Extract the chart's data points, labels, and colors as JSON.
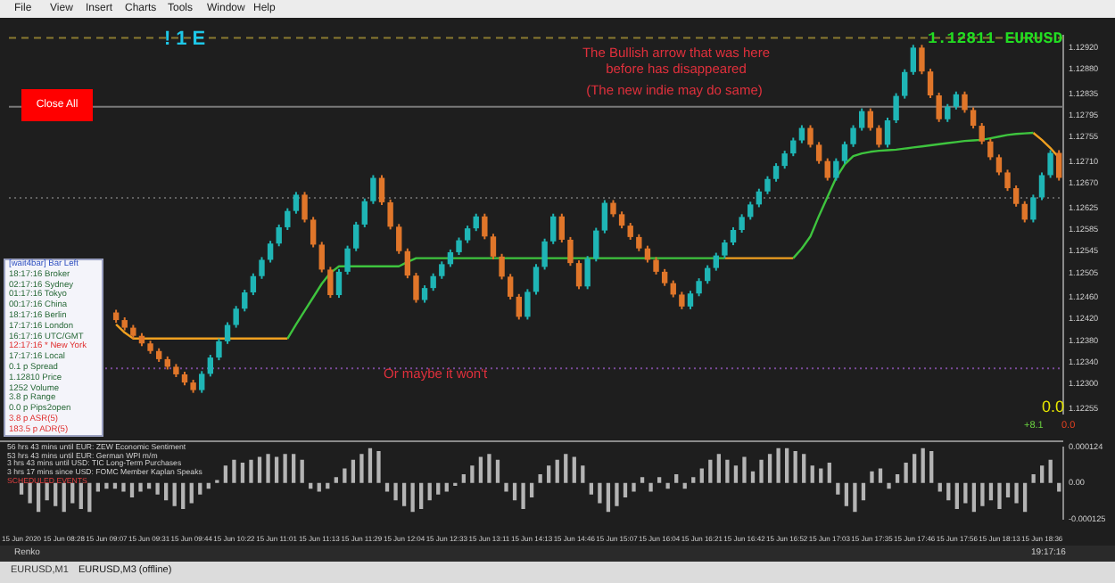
{
  "chart_data": [
    {
      "type": "candlestick",
      "categories": [
        null,
        null,
        null,
        null,
        null,
        null,
        null,
        null,
        null,
        null,
        null,
        null,
        null,
        null,
        null,
        null,
        null,
        null,
        null,
        null,
        null,
        null,
        null,
        null,
        null,
        null,
        null,
        null,
        null,
        null,
        null,
        null,
        null,
        null,
        null,
        null,
        null,
        null,
        null,
        null,
        null,
        null,
        null,
        null,
        null,
        null,
        null,
        null,
        null,
        null,
        null,
        null,
        null,
        null,
        null,
        null,
        null,
        null,
        null,
        null,
        null,
        null,
        null,
        null,
        null,
        null,
        null,
        null,
        null,
        null,
        null,
        null,
        null,
        null,
        null,
        null,
        null,
        null,
        null,
        null,
        null,
        null,
        null,
        null,
        null,
        null,
        null,
        null,
        null,
        null,
        null,
        null,
        null,
        null,
        null,
        null,
        null,
        null,
        null,
        null,
        null,
        null,
        null,
        null,
        null,
        null,
        null,
        null,
        null,
        null,
        null,
        null,
        null,
        null,
        null,
        null,
        null,
        null,
        null,
        null,
        null,
        null,
        null
      ],
      "ohlc": [
        null,
        null,
        null,
        null,
        null,
        null,
        null,
        null,
        null,
        null,
        null,
        null,
        [
          1.12432,
          1.12437,
          1.12413,
          1.12418
        ],
        [
          1.12418,
          1.12423,
          1.12399,
          1.12404
        ],
        [
          1.12404,
          1.12409,
          1.12384,
          1.12389
        ],
        [
          1.12389,
          1.12394,
          1.1237,
          1.12375
        ],
        [
          1.12375,
          1.1238,
          1.12356,
          1.12361
        ],
        [
          1.12361,
          1.12366,
          1.12341,
          1.12346
        ],
        [
          1.12346,
          1.12351,
          1.12327,
          1.12332
        ],
        [
          1.12332,
          1.12337,
          1.12313,
          1.12318
        ],
        [
          1.12318,
          1.12323,
          1.12298,
          1.12303
        ],
        [
          1.12303,
          1.12308,
          1.12284,
          1.12289
        ],
        [
          1.12289,
          1.12324,
          1.12284,
          1.12319
        ],
        [
          1.12319,
          1.12354,
          1.12314,
          1.12349
        ],
        [
          1.12349,
          1.12384,
          1.12344,
          1.12379
        ],
        [
          1.12379,
          1.12414,
          1.12374,
          1.12409
        ],
        [
          1.12409,
          1.12444,
          1.12404,
          1.12439
        ],
        [
          1.12439,
          1.12474,
          1.12434,
          1.12469
        ],
        [
          1.12469,
          1.12504,
          1.12464,
          1.12499
        ],
        [
          1.12499,
          1.12534,
          1.12494,
          1.12529
        ],
        [
          1.12529,
          1.12564,
          1.12524,
          1.12559
        ],
        [
          1.12559,
          1.12594,
          1.12554,
          1.12589
        ],
        [
          1.12589,
          1.12624,
          1.12584,
          1.12619
        ],
        [
          1.12619,
          1.12654,
          1.12614,
          1.12649
        ],
        [
          1.12649,
          1.12654,
          1.12598,
          1.12603
        ],
        [
          1.12603,
          1.12608,
          1.12552,
          1.12557
        ],
        [
          1.12557,
          1.12562,
          1.12506,
          1.12511
        ],
        [
          1.12511,
          1.12516,
          1.12459,
          1.12464
        ],
        [
          1.12464,
          1.12512,
          1.12459,
          1.12507
        ],
        [
          1.12507,
          1.12555,
          1.12502,
          1.1255
        ],
        [
          1.1255,
          1.12599,
          1.12545,
          1.12594
        ],
        [
          1.12594,
          1.12642,
          1.12589,
          1.12637
        ],
        [
          1.12637,
          1.12685,
          1.12632,
          1.1268
        ],
        [
          1.1268,
          1.12685,
          1.1263,
          1.12635
        ],
        [
          1.12635,
          1.1264,
          1.12585,
          1.1259
        ],
        [
          1.1259,
          1.12595,
          1.1254,
          1.12545
        ],
        [
          1.12545,
          1.1255,
          1.12495,
          1.125
        ],
        [
          1.125,
          1.12505,
          1.1245,
          1.12455
        ],
        [
          1.12455,
          1.12482,
          1.1245,
          1.12477
        ],
        [
          1.12477,
          1.12504,
          1.12472,
          1.12499
        ],
        [
          1.12499,
          1.12526,
          1.12494,
          1.12521
        ],
        [
          1.12521,
          1.12548,
          1.12516,
          1.12543
        ],
        [
          1.12543,
          1.1257,
          1.12538,
          1.12565
        ],
        [
          1.12565,
          1.12592,
          1.1256,
          1.12587
        ],
        [
          1.12587,
          1.12614,
          1.12582,
          1.12609
        ],
        [
          1.12609,
          1.12614,
          1.12567,
          1.12572
        ],
        [
          1.12572,
          1.12577,
          1.1253,
          1.12535
        ],
        [
          1.12535,
          1.1254,
          1.12493,
          1.12498
        ],
        [
          1.12498,
          1.12503,
          1.12456,
          1.12461
        ],
        [
          1.12461,
          1.12466,
          1.12419,
          1.12424
        ],
        [
          1.12424,
          1.12475,
          1.12419,
          1.1247
        ],
        [
          1.1247,
          1.12521,
          1.12465,
          1.12516
        ],
        [
          1.12516,
          1.12568,
          1.12511,
          1.12563
        ],
        [
          1.12563,
          1.12614,
          1.12558,
          1.12609
        ],
        [
          1.12609,
          1.12614,
          1.12561,
          1.12566
        ],
        [
          1.12566,
          1.12571,
          1.12518,
          1.12523
        ],
        [
          1.12523,
          1.12528,
          1.12475,
          1.1248
        ],
        [
          1.1248,
          1.12536,
          1.12475,
          1.12531
        ],
        [
          1.12531,
          1.12588,
          1.12526,
          1.12583
        ],
        [
          1.12583,
          1.12639,
          1.12578,
          1.12634
        ],
        [
          1.12634,
          1.12639,
          1.12608,
          1.12613
        ],
        [
          1.12613,
          1.12618,
          1.12587,
          1.12592
        ],
        [
          1.12592,
          1.12597,
          1.12566,
          1.12571
        ],
        [
          1.12571,
          1.12576,
          1.12545,
          1.1255
        ],
        [
          1.1255,
          1.12555,
          1.12524,
          1.12529
        ],
        [
          1.12529,
          1.12534,
          1.12502,
          1.12507
        ],
        [
          1.12507,
          1.12512,
          1.12481,
          1.12486
        ],
        [
          1.12486,
          1.12491,
          1.1246,
          1.12465
        ],
        [
          1.12465,
          1.1247,
          1.12438,
          1.12443
        ],
        [
          1.12443,
          1.12472,
          1.12438,
          1.12467
        ],
        [
          1.12467,
          1.12495,
          1.12462,
          1.1249
        ],
        [
          1.1249,
          1.12519,
          1.12485,
          1.12514
        ],
        [
          1.12514,
          1.12542,
          1.12509,
          1.12537
        ],
        [
          1.12537,
          1.12566,
          1.12532,
          1.12561
        ],
        [
          1.12561,
          1.12589,
          1.12556,
          1.12584
        ],
        [
          1.12584,
          1.12613,
          1.12579,
          1.12608
        ],
        [
          1.12608,
          1.12636,
          1.12603,
          1.12631
        ],
        [
          1.12631,
          1.1266,
          1.12626,
          1.12655
        ],
        [
          1.12655,
          1.12683,
          1.1265,
          1.12678
        ],
        [
          1.12678,
          1.12707,
          1.12673,
          1.12702
        ],
        [
          1.12702,
          1.1273,
          1.12697,
          1.12725
        ],
        [
          1.12725,
          1.12754,
          1.1272,
          1.12749
        ],
        [
          1.12749,
          1.12777,
          1.12744,
          1.12772
        ],
        [
          1.12772,
          1.12777,
          1.12736,
          1.12741
        ],
        [
          1.12741,
          1.12746,
          1.12706,
          1.12711
        ],
        [
          1.12711,
          1.12716,
          1.12675,
          1.1268
        ],
        [
          1.1268,
          1.12716,
          1.12675,
          1.12711
        ],
        [
          1.12711,
          1.12747,
          1.12706,
          1.12742
        ],
        [
          1.12742,
          1.12777,
          1.12737,
          1.12772
        ],
        [
          1.12772,
          1.12808,
          1.12767,
          1.12803
        ],
        [
          1.12803,
          1.12808,
          1.12767,
          1.12772
        ],
        [
          1.12772,
          1.12777,
          1.12736,
          1.12741
        ],
        [
          1.12741,
          1.12791,
          1.12736,
          1.12786
        ],
        [
          1.12786,
          1.12836,
          1.12781,
          1.12831
        ],
        [
          1.12831,
          1.1288,
          1.12826,
          1.12875
        ],
        [
          1.12875,
          1.12925,
          1.1287,
          1.1292
        ],
        [
          1.1292,
          1.12925,
          1.12871,
          1.12876
        ],
        [
          1.12876,
          1.12881,
          1.12827,
          1.12832
        ],
        [
          1.12832,
          1.12837,
          1.12783,
          1.12788
        ],
        [
          1.12788,
          1.12816,
          1.12783,
          1.12811
        ],
        [
          1.12811,
          1.12839,
          1.12806,
          1.12834
        ],
        [
          1.12834,
          1.12839,
          1.128,
          1.12805
        ],
        [
          1.12805,
          1.1281,
          1.12771,
          1.12776
        ],
        [
          1.12776,
          1.12781,
          1.12742,
          1.12747
        ],
        [
          1.12747,
          1.12752,
          1.12713,
          1.12718
        ],
        [
          1.12718,
          1.12723,
          1.12685,
          1.1269
        ],
        [
          1.1269,
          1.12695,
          1.12656,
          1.12661
        ],
        [
          1.12661,
          1.12666,
          1.12627,
          1.12632
        ],
        [
          1.12632,
          1.12637,
          1.12598,
          1.12603
        ],
        [
          1.12603,
          1.12649,
          1.12598,
          1.12644
        ],
        [
          1.12644,
          1.1269,
          1.12639,
          1.12685
        ],
        [
          1.12685,
          1.12731,
          1.1268,
          1.12726
        ],
        [
          1.12726,
          1.12731,
          1.12675,
          1.1268
        ]
      ],
      "colors": [
        null,
        null,
        null,
        null,
        null,
        null,
        null,
        null,
        null,
        null,
        null,
        null,
        "#e0762a",
        "#e0762a",
        "#e0762a",
        "#e0762a",
        "#e0762a",
        "#e0762a",
        "#e0762a",
        "#e0762a",
        "#e0762a",
        "#e0762a",
        "#1fb5b5",
        "#1fb5b5",
        "#1fb5b5",
        "#1fb5b5",
        "#1fb5b5",
        "#1fb5b5",
        "#1fb5b5",
        "#1fb5b5",
        "#1fb5b5",
        "#1fb5b5",
        "#1fb5b5",
        "#1fb5b5",
        "#e0762a",
        "#e0762a",
        "#e0762a",
        "#e0762a",
        "#1fb5b5",
        "#1fb5b5",
        "#1fb5b5",
        "#1fb5b5",
        "#1fb5b5",
        "#e0762a",
        "#e0762a",
        "#e0762a",
        "#e0762a",
        "#e0762a",
        "#1fb5b5",
        "#1fb5b5",
        "#1fb5b5",
        "#1fb5b5",
        "#1fb5b5",
        "#1fb5b5",
        "#1fb5b5",
        "#e0762a",
        "#e0762a",
        "#e0762a",
        "#e0762a",
        "#e0762a",
        "#1fb5b5",
        "#1fb5b5",
        "#1fb5b5",
        "#1fb5b5",
        "#e0762a",
        "#e0762a",
        "#e0762a",
        "#1fb5b5",
        "#1fb5b5",
        "#1fb5b5",
        "#e0762a",
        "#e0762a",
        "#e0762a",
        "#e0762a",
        "#e0762a",
        "#e0762a",
        "#e0762a",
        "#e0762a",
        "#e0762a",
        "#1fb5b5",
        "#1fb5b5",
        "#1fb5b5",
        "#1fb5b5",
        "#1fb5b5",
        "#1fb5b5",
        "#1fb5b5",
        "#1fb5b5",
        "#1fb5b5",
        "#1fb5b5",
        "#1fb5b5",
        "#1fb5b5",
        "#1fb5b5",
        "#1fb5b5",
        "#e0762a",
        "#e0762a",
        "#e0762a",
        "#1fb5b5",
        "#1fb5b5",
        "#1fb5b5",
        "#1fb5b5",
        "#e0762a",
        "#e0762a",
        "#1fb5b5",
        "#1fb5b5",
        "#1fb5b5",
        "#1fb5b5",
        "#e0762a",
        "#e0762a",
        "#e0762a",
        "#1fb5b5",
        "#1fb5b5",
        "#e0762a",
        "#e0762a",
        "#e0762a",
        "#e0762a",
        "#e0762a",
        "#e0762a",
        "#e0762a",
        "#e0762a",
        "#1fb5b5",
        "#1fb5b5",
        "#1fb5b5",
        "#e0762a"
      ],
      "series": [
        {
          "type": "line",
          "color": "#3ec43e",
          "values": [
            null,
            null,
            null,
            null,
            null,
            null,
            null,
            null,
            null,
            null,
            null,
            null,
            null,
            null,
            null,
            null,
            null,
            null,
            null,
            null,
            null,
            null,
            null,
            null,
            null,
            null,
            null,
            null,
            null,
            null,
            null,
            null,
            1.12384,
            1.1241,
            1.12435,
            1.1246,
            1.12485,
            1.12505,
            1.12517,
            1.12517,
            1.12517,
            1.12517,
            1.12517,
            1.12517,
            1.12517,
            1.12517,
            1.12525,
            1.12532,
            1.12532,
            1.12532,
            1.12532,
            1.12532,
            1.12532,
            1.12532,
            1.12532,
            1.12532,
            1.12532,
            1.12532,
            1.12532,
            1.12532,
            1.12532,
            1.12532,
            1.12532,
            1.12532,
            1.12532,
            1.12532,
            1.12532,
            1.12532,
            1.12532,
            1.12532,
            1.12532,
            1.12532,
            1.12532,
            1.12532,
            1.12532,
            1.12532,
            1.12532,
            1.12532,
            1.12532,
            1.12532,
            1.12532,
            1.12532,
            1.12532,
            1.12532,
            null,
            null,
            null,
            null,
            null,
            null,
            null,
            1.12532,
            1.1255,
            1.12572,
            1.1261,
            1.12645,
            1.1268,
            1.12705,
            1.1272,
            1.12725,
            1.12728,
            1.1273,
            1.12731,
            1.12732,
            1.12734,
            1.12736,
            1.12738,
            1.1274,
            1.12742,
            1.12744,
            1.12746,
            1.12748,
            1.12749,
            1.1275,
            1.12753,
            1.12756,
            1.12759,
            1.12761,
            1.12762,
            1.12763,
            null,
            null,
            null
          ]
        },
        {
          "type": "line",
          "color": "#f0a020",
          "values": [
            null,
            null,
            null,
            null,
            null,
            null,
            null,
            null,
            null,
            null,
            null,
            null,
            1.1241,
            1.12395,
            1.12384,
            1.12384,
            1.12384,
            1.12384,
            1.12384,
            1.12384,
            1.12384,
            1.12384,
            1.12384,
            1.12384,
            1.12384,
            1.12384,
            1.12384,
            1.12384,
            1.12384,
            1.12384,
            1.12384,
            1.12384,
            1.12384,
            null,
            null,
            null,
            null,
            null,
            null,
            null,
            null,
            null,
            null,
            null,
            null,
            null,
            null,
            null,
            null,
            null,
            null,
            null,
            null,
            null,
            null,
            null,
            null,
            null,
            null,
            null,
            null,
            null,
            null,
            null,
            null,
            null,
            null,
            null,
            null,
            null,
            null,
            null,
            null,
            null,
            null,
            null,
            null,
            null,
            null,
            null,
            null,
            null,
            null,
            1.12532,
            1.12532,
            1.12532,
            1.12532,
            1.12532,
            1.12532,
            1.12532,
            1.12532,
            1.12532,
            null,
            null,
            null,
            null,
            null,
            null,
            null,
            null,
            null,
            null,
            null,
            null,
            null,
            null,
            null,
            null,
            null,
            null,
            null,
            null,
            null,
            null,
            null,
            null,
            null,
            null,
            null,
            1.12763,
            1.1275,
            1.12735,
            1.12717
          ]
        }
      ],
      "ylim": [
        1.12245,
        1.12942
      ],
      "yticks": [
        {
          "value": 1.1292,
          "label": "1.12920"
        },
        {
          "value": 1.1288,
          "label": "1.12880"
        },
        {
          "value": 1.12835,
          "label": "1.12835"
        },
        {
          "value": 1.12795,
          "label": "1.12795"
        },
        {
          "value": 1.12755,
          "label": "1.12755"
        },
        {
          "value": 1.1271,
          "label": "1.12710"
        },
        {
          "value": 1.1267,
          "label": "1.12670"
        },
        {
          "value": 1.12625,
          "label": "1.12625"
        },
        {
          "value": 1.12585,
          "label": "1.12585"
        },
        {
          "value": 1.12545,
          "label": "1.12545"
        },
        {
          "value": 1.12505,
          "label": "1.12505"
        },
        {
          "value": 1.1246,
          "label": "1.12460"
        },
        {
          "value": 1.1242,
          "label": "1.12420"
        },
        {
          "value": 1.1238,
          "label": "1.12380"
        },
        {
          "value": 1.1234,
          "label": "1.12340"
        },
        {
          "value": 1.123,
          "label": "1.12300"
        },
        {
          "value": 1.12255,
          "label": "1.12255"
        }
      ],
      "ref_lines": [
        {
          "axis": "y",
          "value": 1.12811,
          "color": "#7a7a7a"
        },
        {
          "axis": "y",
          "value": 1.12938,
          "color": "#8a7a30",
          "line_style": "dashed"
        },
        {
          "axis": "y",
          "value": 1.12643,
          "color": "#606060",
          "line_style": "dotted"
        },
        {
          "axis": "y",
          "value": 1.12329,
          "color": "#7a4a9a",
          "line_style": "dotted"
        }
      ],
      "annotations": [
        "!1E",
        "The Bullish arrow that was here before has disappeared",
        "(The new indie may do same)",
        "Or maybe it won't",
        "0.0",
        "+8.1",
        "0.0",
        "1.12811 EURUSD"
      ]
    },
    {
      "type": "bar",
      "categories": [
        "15 Jun 2020",
        null,
        null,
        null,
        null,
        "15 Jun 08:28",
        null,
        null,
        null,
        null,
        "15 Jun 09:07",
        null,
        null,
        null,
        null,
        "15 Jun 09:31",
        null,
        null,
        null,
        null,
        "15 Jun 09:44",
        null,
        null,
        null,
        null,
        "15 Jun 10:22",
        null,
        null,
        null,
        null,
        "15 Jun 11:01",
        null,
        null,
        null,
        null,
        "15 Jun 11:13",
        null,
        null,
        null,
        null,
        "15 Jun 11:29",
        null,
        null,
        null,
        null,
        "15 Jun 12:04",
        null,
        null,
        null,
        null,
        "15 Jun 12:33",
        null,
        null,
        null,
        null,
        "15 Jun 13:11",
        null,
        null,
        null,
        null,
        "15 Jun 14:13",
        null,
        null,
        null,
        null,
        "15 Jun 14:46",
        null,
        null,
        null,
        null,
        "15 Jun 15:07",
        null,
        null,
        null,
        null,
        "15 Jun 16:04",
        null,
        null,
        null,
        null,
        "15 Jun 16:21",
        null,
        null,
        null,
        null,
        "15 Jun 16:42",
        null,
        null,
        null,
        null,
        "15 Jun 16:52",
        null,
        null,
        null,
        null,
        "15 Jun 17:03",
        null,
        null,
        null,
        null,
        "15 Jun 17:35",
        null,
        null,
        null,
        null,
        "15 Jun 17:46",
        null,
        null,
        null,
        null,
        "15 Jun 17:56",
        null,
        null,
        null,
        null,
        "15 Jun 18:13",
        null,
        null,
        null,
        null,
        "15 Jun 18:36",
        null,
        null
      ],
      "values": [
        -4e-05,
        -7e-05,
        -0.0001,
        -6e-05,
        -8e-05,
        -0.0001,
        -7e-05,
        -9e-05,
        -0.0001,
        -3e-05,
        -2e-05,
        -2e-05,
        -3e-05,
        -5e-05,
        -3e-05,
        -2e-05,
        -4e-05,
        -6e-05,
        -8e-05,
        -9e-05,
        -7e-05,
        -4e-05,
        -2e-05,
        1e-05,
        6e-05,
        8e-05,
        7e-05,
        8e-05,
        9e-05,
        0.0001,
        9e-05,
        0.0001,
        0.0001,
        8e-05,
        -2e-05,
        -3e-05,
        -2e-05,
        2e-05,
        5e-05,
        8e-05,
        0.0001,
        0.00012,
        0.00011,
        -3e-05,
        -6e-05,
        -8e-05,
        -0.0001,
        -9e-05,
        -6e-05,
        -4e-05,
        -3e-05,
        -1e-05,
        3e-05,
        6e-05,
        9e-05,
        0.0001,
        8e-05,
        -3e-05,
        -6e-05,
        -9e-05,
        -5e-05,
        3e-05,
        6e-05,
        8e-05,
        0.0001,
        9e-05,
        6e-05,
        -4e-05,
        -7e-05,
        -0.0001,
        -8e-05,
        -5e-05,
        -3e-05,
        2e-05,
        -3e-05,
        2e-05,
        -2e-05,
        3e-05,
        -2e-05,
        2e-05,
        5e-05,
        8e-05,
        0.0001,
        8e-05,
        6e-05,
        9e-05,
        4e-05,
        8e-05,
        0.0001,
        0.00012,
        0.00012,
        0.00011,
        0.0001,
        6e-05,
        5e-05,
        7e-05,
        -4e-05,
        -8e-05,
        -0.0001,
        -6e-05,
        4e-05,
        5e-05,
        -2e-05,
        3e-05,
        7e-05,
        0.0001,
        0.00012,
        0.00011,
        -3e-05,
        -6e-05,
        -9e-05,
        -7e-05,
        -0.0001,
        -8e-05,
        -6e-05,
        -9e-05,
        -5e-05,
        -7e-05,
        -0.0001,
        3e-05,
        6e-05,
        8e-05,
        -3e-05
      ],
      "color": "#b4b4b4",
      "ylim": [
        -0.000125,
        0.000124
      ],
      "yticks": [
        {
          "value": 0.000124,
          "label": "0.000124"
        },
        {
          "value": 0,
          "label": "0.00"
        },
        {
          "value": -0.000125,
          "label": "-0.000125"
        }
      ],
      "annotations": [
        "56 hrs 43 mins until EUR: ZEW Economic Sentiment",
        "53 hrs 43 mins until EUR: German WPI m/m",
        "3 hrs 43 mins until USD: TIC Long-Term Purchases",
        "3 hrs 17 mins since USD: FOMC Member Kaplan Speaks",
        "SCHEDULED EVENTS"
      ]
    },
    {
      "type": "other",
      "annotations": [
        "[wait4bar] Bar Left",
        "18:17:16 Broker",
        "02:17:16 Sydney",
        "01:17:16 Tokyo",
        "00:17:16 China",
        "18:17:16 Berlin",
        "17:17:16 London",
        "16:17:16 UTC/GMT",
        "12:17:16 * New York",
        "17:17:16 Local",
        "0.1 p Spread",
        "1.12810 Price",
        "1252 Volume",
        "3.8 p Range",
        "0.0 p Pips2open",
        "3.8 p ASR(5)",
        "183.5 p ADR(5)"
      ]
    },
    {
      "type": "other",
      "annotations": [
        "File",
        "View",
        "Insert",
        "Charts",
        "Tools",
        "Window",
        "Help",
        "Close All",
        "Renko",
        "19:17:16",
        "EURUSD,M1",
        "EURUSD,M3 (offline)"
      ]
    }
  ]
}
